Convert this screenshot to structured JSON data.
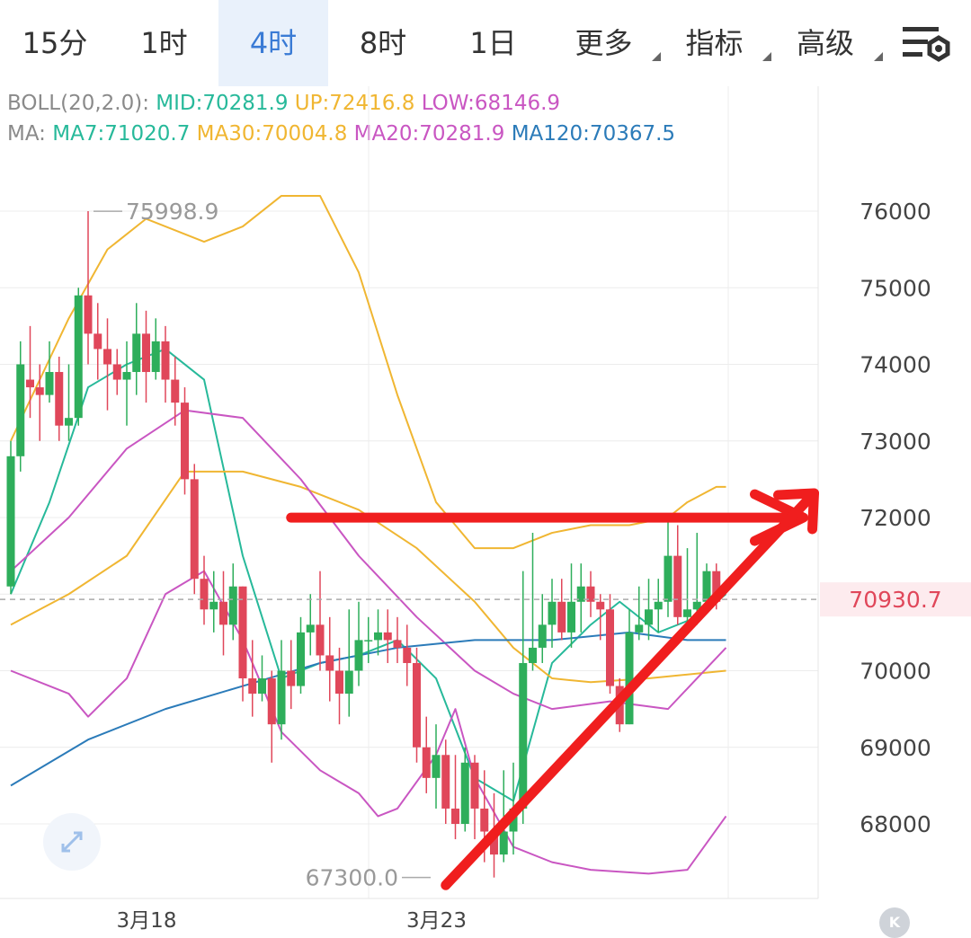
{
  "tabs": [
    {
      "label": "15分",
      "active": false,
      "dropdown": false
    },
    {
      "label": "1时",
      "active": false,
      "dropdown": false
    },
    {
      "label": "4时",
      "active": true,
      "dropdown": false
    },
    {
      "label": "8时",
      "active": false,
      "dropdown": false
    },
    {
      "label": "1日",
      "active": false,
      "dropdown": false
    },
    {
      "label": "更多",
      "active": false,
      "dropdown": true
    },
    {
      "label": "指标",
      "active": false,
      "dropdown": true
    },
    {
      "label": "高级",
      "active": false,
      "dropdown": true
    }
  ],
  "settings_icon": "chart-settings-icon",
  "boll": {
    "prefix": "BOLL(20,2.0):",
    "mid": "MID:70281.9",
    "up": "UP:72416.8",
    "low": "LOW:68146.9"
  },
  "ma": {
    "prefix": "MA:",
    "ma7": "MA7:71020.7",
    "ma30": "MA30:70004.8",
    "ma20": "MA20:70281.9",
    "ma120": "MA120:70367.5"
  },
  "colors": {
    "up": "#2eae5b",
    "down": "#e0475a",
    "ma7": "#27b99a",
    "ma30": "#f0b632",
    "ma20": "#c956c2",
    "ma120": "#2b7bb9",
    "arrow": "#f01e1e",
    "price_tag": "#e0475a",
    "grid": "#ececec",
    "axis_text": "#444",
    "legend_gray": "#8a8a8a"
  },
  "current_price_label": "70930.7",
  "high_marker": "75998.9",
  "low_marker": "67300.0",
  "chart_data": {
    "type": "candlestick",
    "y_ticks": [
      "76000",
      "75000",
      "74000",
      "73000",
      "72000",
      "71000",
      "70000",
      "69000",
      "68000"
    ],
    "ylim": [
      67100,
      77300
    ],
    "x_labels": [
      {
        "label": "3月18",
        "index": 12
      },
      {
        "label": "3月23",
        "index": 42
      }
    ],
    "current_price": 70930.7,
    "high": {
      "value": 75998.9,
      "index": 8
    },
    "low": {
      "value": 67300.0,
      "index": 44
    },
    "candles": [
      [
        71100,
        72800,
        73000,
        71000
      ],
      [
        72800,
        74000,
        74300,
        72600
      ],
      [
        73800,
        73700,
        74500,
        73300
      ],
      [
        73700,
        73600,
        74000,
        73000
      ],
      [
        73600,
        73900,
        74300,
        73500
      ],
      [
        73900,
        73200,
        74100,
        73000
      ],
      [
        73200,
        73300,
        74000,
        73000
      ],
      [
        73300,
        74900,
        75000,
        73200
      ],
      [
        74900,
        74400,
        76000,
        74000
      ],
      [
        74400,
        74200,
        74800,
        73800
      ],
      [
        74200,
        74000,
        74600,
        73400
      ],
      [
        74000,
        73800,
        74200,
        73600
      ],
      [
        73800,
        73900,
        74300,
        73200
      ],
      [
        73900,
        74400,
        74800,
        73600
      ],
      [
        74400,
        73900,
        74700,
        73500
      ],
      [
        73900,
        74300,
        74600,
        73800
      ],
      [
        74300,
        73800,
        74500,
        73500
      ],
      [
        73800,
        73500,
        74100,
        73200
      ],
      [
        73500,
        72500,
        73700,
        72300
      ],
      [
        72500,
        71200,
        72700,
        71000
      ],
      [
        71200,
        70800,
        71500,
        70600
      ],
      [
        70800,
        70900,
        71300,
        70500
      ],
      [
        70900,
        70600,
        71300,
        70200
      ],
      [
        70600,
        71100,
        71400,
        70400
      ],
      [
        71100,
        69900,
        71100,
        69600
      ],
      [
        69900,
        69700,
        70400,
        69400
      ],
      [
        69700,
        69900,
        70200,
        69600
      ],
      [
        69900,
        69300,
        70000,
        68800
      ],
      [
        69300,
        70000,
        70400,
        69100
      ],
      [
        70000,
        69800,
        70400,
        69500
      ],
      [
        69800,
        70500,
        70700,
        69700
      ],
      [
        70500,
        70600,
        71000,
        70200
      ],
      [
        70600,
        70200,
        71300,
        70000
      ],
      [
        70200,
        70000,
        70700,
        69600
      ],
      [
        70000,
        69700,
        70300,
        69300
      ],
      [
        69700,
        70000,
        70800,
        69400
      ],
      [
        70000,
        70400,
        70900,
        69800
      ],
      [
        70400,
        70400,
        70700,
        70100
      ],
      [
        70400,
        70500,
        70800,
        70200
      ],
      [
        70500,
        70400,
        70800,
        70100
      ],
      [
        70400,
        70300,
        70700,
        70100
      ],
      [
        70300,
        70100,
        70600,
        69800
      ],
      [
        70100,
        69000,
        70300,
        68800
      ],
      [
        69000,
        68600,
        69400,
        68400
      ],
      [
        68600,
        68900,
        69300,
        68200
      ],
      [
        68900,
        68200,
        69100,
        68000
      ],
      [
        68200,
        68000,
        68900,
        67800
      ],
      [
        68000,
        68800,
        69000,
        67900
      ],
      [
        68800,
        68200,
        68900,
        67800
      ],
      [
        68200,
        67900,
        68700,
        67500
      ],
      [
        67900,
        67600,
        68400,
        67300
      ],
      [
        67600,
        67900,
        68700,
        67500
      ],
      [
        67900,
        68200,
        68800,
        67600
      ],
      [
        68200,
        70100,
        71300,
        68000
      ],
      [
        70100,
        70300,
        71800,
        70000
      ],
      [
        70300,
        70600,
        71000,
        70100
      ],
      [
        70600,
        70900,
        71200,
        70300
      ],
      [
        70900,
        70500,
        71200,
        70400
      ],
      [
        70500,
        70900,
        71400,
        70300
      ],
      [
        70900,
        71100,
        71400,
        70500
      ],
      [
        71100,
        70900,
        71300,
        70700
      ],
      [
        70900,
        70800,
        71000,
        70400
      ],
      [
        70800,
        69800,
        71000,
        69700
      ],
      [
        69800,
        69300,
        69900,
        69200
      ],
      [
        69300,
        70500,
        70800,
        69300
      ],
      [
        70500,
        70600,
        71100,
        70400
      ],
      [
        70600,
        70800,
        71200,
        70400
      ],
      [
        70800,
        70900,
        71200,
        70500
      ],
      [
        70900,
        71500,
        72000,
        70700
      ],
      [
        71500,
        70700,
        71900,
        70600
      ],
      [
        70700,
        70800,
        71600,
        70600
      ],
      [
        70800,
        70900,
        71800,
        70600
      ],
      [
        70900,
        71300,
        71400,
        70800
      ],
      [
        71300,
        70900,
        71400,
        70800
      ]
    ],
    "series": [
      {
        "key": "ma7",
        "values": [
          [
            0,
            71000
          ],
          [
            4,
            72200
          ],
          [
            8,
            73700
          ],
          [
            12,
            74000
          ],
          [
            16,
            74200
          ],
          [
            20,
            73800
          ],
          [
            24,
            71500
          ],
          [
            28,
            69900
          ],
          [
            32,
            70100
          ],
          [
            36,
            70200
          ],
          [
            40,
            70400
          ],
          [
            44,
            69900
          ],
          [
            48,
            68600
          ],
          [
            52,
            68300
          ],
          [
            56,
            70100
          ],
          [
            60,
            70600
          ],
          [
            63,
            70900
          ],
          [
            67,
            70500
          ],
          [
            71,
            70700
          ],
          [
            74,
            71000
          ]
        ]
      },
      {
        "key": "ma30",
        "values": [
          [
            0,
            70600
          ],
          [
            6,
            71000
          ],
          [
            12,
            71500
          ],
          [
            18,
            72600
          ],
          [
            24,
            72600
          ],
          [
            30,
            72400
          ],
          [
            36,
            72100
          ],
          [
            42,
            71600
          ],
          [
            48,
            70900
          ],
          [
            52,
            70300
          ],
          [
            56,
            69900
          ],
          [
            60,
            69850
          ],
          [
            66,
            69900
          ],
          [
            74,
            70000
          ]
        ]
      },
      {
        "key": "ma20",
        "values": [
          [
            0,
            71300
          ],
          [
            6,
            72000
          ],
          [
            12,
            72900
          ],
          [
            18,
            73400
          ],
          [
            24,
            73300
          ],
          [
            30,
            72500
          ],
          [
            36,
            71500
          ],
          [
            42,
            70700
          ],
          [
            48,
            70000
          ],
          [
            52,
            69700
          ],
          [
            56,
            69500
          ],
          [
            62,
            69600
          ],
          [
            68,
            69500
          ],
          [
            74,
            70300
          ]
        ]
      },
      {
        "key": "boll_up",
        "values": [
          [
            0,
            73000
          ],
          [
            6,
            74600
          ],
          [
            10,
            75500
          ],
          [
            14,
            75900
          ],
          [
            20,
            75600
          ],
          [
            24,
            75800
          ],
          [
            28,
            76200
          ],
          [
            32,
            76200
          ],
          [
            36,
            75200
          ],
          [
            40,
            73600
          ],
          [
            44,
            72200
          ],
          [
            48,
            71600
          ],
          [
            52,
            71600
          ],
          [
            56,
            71800
          ],
          [
            60,
            71900
          ],
          [
            64,
            71900
          ],
          [
            68,
            72000
          ],
          [
            70,
            72200
          ],
          [
            73,
            72400
          ],
          [
            74,
            72400
          ]
        ]
      },
      {
        "key": "boll_low",
        "values": [
          [
            0,
            70000
          ],
          [
            6,
            69700
          ],
          [
            8,
            69400
          ],
          [
            12,
            69900
          ],
          [
            16,
            71000
          ],
          [
            20,
            71300
          ],
          [
            24,
            70400
          ],
          [
            28,
            69200
          ],
          [
            32,
            68700
          ],
          [
            36,
            68400
          ],
          [
            38,
            68100
          ],
          [
            40,
            68200
          ],
          [
            44,
            68900
          ],
          [
            46,
            69500
          ],
          [
            48,
            68600
          ],
          [
            52,
            67700
          ],
          [
            56,
            67500
          ],
          [
            60,
            67400
          ],
          [
            66,
            67350
          ],
          [
            70,
            67400
          ],
          [
            74,
            68100
          ]
        ]
      },
      {
        "key": "ma120",
        "values": [
          [
            0,
            68500
          ],
          [
            8,
            69100
          ],
          [
            16,
            69500
          ],
          [
            24,
            69800
          ],
          [
            32,
            70100
          ],
          [
            40,
            70300
          ],
          [
            44,
            70350
          ],
          [
            48,
            70400
          ],
          [
            56,
            70400
          ],
          [
            64,
            70500
          ],
          [
            70,
            70400
          ],
          [
            74,
            70400
          ]
        ]
      }
    ],
    "annotations": [
      {
        "type": "arrow",
        "from": [
          29,
          71999
        ],
        "to": [
          82,
          71999
        ]
      },
      {
        "type": "arrow",
        "from": [
          45,
          67200
        ],
        "to": [
          82,
          72200
        ]
      }
    ]
  }
}
